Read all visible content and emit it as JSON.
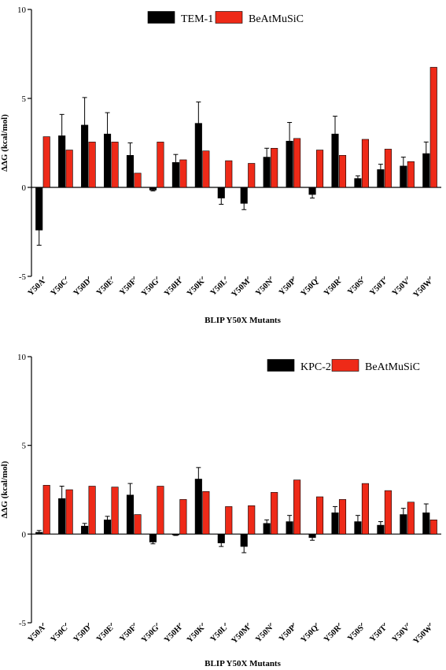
{
  "colors": {
    "tem": "#000000",
    "kpc": "#000000",
    "beatmusic": "#ee2a18",
    "axis": "#000000",
    "error": "#000000"
  },
  "chart_data": [
    {
      "type": "bar",
      "xlabel": "BLIP Y50X Mutants",
      "ylabel": "ΔΔG (kcal/mol)",
      "ylim": [
        -5,
        10
      ],
      "yticks": [
        "-5",
        "0",
        "5",
        "10"
      ],
      "categories": [
        "Y50A",
        "Y50C",
        "Y50D",
        "Y50E",
        "Y50F",
        "Y50G",
        "Y50H",
        "Y50K",
        "Y50L",
        "Y50M",
        "Y50N",
        "Y50P",
        "Y50Q",
        "Y50R",
        "Y50S",
        "Y50T",
        "Y50V",
        "Y50W"
      ],
      "legend_position": "top",
      "series": [
        {
          "name": "TEM-1",
          "color_key": "tem",
          "values": [
            -2.4,
            2.9,
            3.5,
            3.0,
            1.8,
            -0.15,
            1.4,
            3.6,
            -0.6,
            -0.9,
            1.7,
            2.6,
            -0.4,
            3.0,
            0.5,
            1.0,
            1.2,
            1.9
          ],
          "errors": [
            0.85,
            1.2,
            1.55,
            1.2,
            0.7,
            0.05,
            0.45,
            1.2,
            0.35,
            0.35,
            0.5,
            1.05,
            0.2,
            1.0,
            0.15,
            0.3,
            0.5,
            0.65
          ]
        },
        {
          "name": "BeAtMuSiC",
          "color_key": "beatmusic",
          "values": [
            2.85,
            2.1,
            2.55,
            2.55,
            0.8,
            2.55,
            1.55,
            2.05,
            1.5,
            1.35,
            2.2,
            2.75,
            2.1,
            1.8,
            2.7,
            2.15,
            1.45,
            6.75
          ],
          "errors": []
        }
      ]
    },
    {
      "type": "bar",
      "xlabel": "BLIP Y50X Mutants",
      "ylabel": "ΔΔG (kcal/mol)",
      "ylim": [
        -5,
        10
      ],
      "yticks": [
        "-5",
        "0",
        "5",
        "10"
      ],
      "categories": [
        "Y50A",
        "Y50C",
        "Y50D",
        "Y50E",
        "Y50F",
        "Y50G",
        "Y50H",
        "Y50K",
        "Y50L",
        "Y50M",
        "Y50N",
        "Y50P",
        "Y50Q",
        "Y50R",
        "Y50S",
        "Y50T",
        "Y50V",
        "Y50W"
      ],
      "legend_position": "top",
      "series": [
        {
          "name": "KPC-2",
          "color_key": "kpc",
          "values": [
            0.1,
            2.0,
            0.45,
            0.8,
            2.2,
            -0.45,
            -0.05,
            3.1,
            -0.5,
            -0.7,
            0.6,
            0.7,
            -0.2,
            1.2,
            0.7,
            0.5,
            1.1,
            1.2
          ],
          "errors": [
            0.1,
            0.7,
            0.15,
            0.2,
            0.65,
            0.1,
            0.03,
            0.65,
            0.2,
            0.35,
            0.2,
            0.35,
            0.15,
            0.35,
            0.35,
            0.2,
            0.35,
            0.5
          ]
        },
        {
          "name": "BeAtMuSiC",
          "color_key": "beatmusic",
          "values": [
            2.75,
            2.5,
            2.7,
            2.65,
            1.1,
            2.7,
            1.95,
            2.4,
            1.55,
            1.6,
            2.35,
            3.05,
            2.1,
            1.95,
            2.85,
            2.45,
            1.8,
            0.8
          ],
          "errors": []
        }
      ]
    }
  ]
}
